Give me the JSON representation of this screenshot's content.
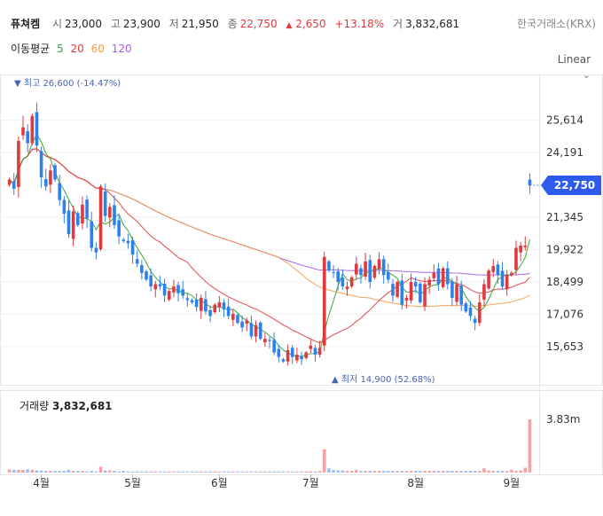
{
  "header": {
    "name": "퓨쳐켐",
    "open_label": "시",
    "open": "23,000",
    "high_label": "고",
    "high": "23,900",
    "low_label": "저",
    "low": "21,950",
    "close_label": "종",
    "close": "22,750",
    "change_arrow": "▲",
    "change": "2,650",
    "change_pct": "+13.18%",
    "volume_label": "거",
    "volume": "3,832,681"
  },
  "exchange": "한국거래소(KRX)",
  "moving_average": {
    "label": "이동평균",
    "periods": [
      "5",
      "20",
      "60",
      "120"
    ],
    "colors": [
      "#2ca02c",
      "#e0393e",
      "#f39c4a",
      "#a85ee6"
    ]
  },
  "scale": {
    "label": "Linear",
    "chevron": "⌄"
  },
  "annotations": {
    "high": "▼ 최고 26,600 (-14.47%)",
    "low": "▲ 최저 14,900 (52.68%)"
  },
  "last_price_tag": "22,750",
  "volume_panel": {
    "label": "거래량",
    "value": "3,832,681",
    "axis_max": "3.83m"
  },
  "colors": {
    "up": "#e0393e",
    "down": "#2f80ed",
    "price_tag": "#2f5bea",
    "annotation": "#4a63b5"
  },
  "chart_data": {
    "type": "candlestick",
    "y_ticks": [
      "25,614",
      "24,191",
      "22,750",
      "21,345",
      "19,922",
      "18,499",
      "17,076",
      "15,653"
    ],
    "y_tick_values": [
      25614,
      24191,
      22750,
      21345,
      19922,
      18499,
      17076,
      15653
    ],
    "ylim": [
      14600,
      27000
    ],
    "x_ticks": [
      "4월",
      "5월",
      "6월",
      "7월",
      "8월",
      "9월"
    ],
    "x_tick_index": [
      7,
      27,
      46,
      66,
      89,
      110
    ],
    "num_bars": 115,
    "close": [
      23000,
      22600,
      24700,
      25300,
      24600,
      25800,
      24500,
      23100,
      22700,
      23400,
      23000,
      22100,
      21500,
      20600,
      21600,
      21000,
      21900,
      21300,
      20000,
      19800,
      22700,
      21400,
      21800,
      21000,
      20500,
      20300,
      20200,
      19700,
      19300,
      18900,
      18600,
      18300,
      18400,
      18300,
      17900,
      18100,
      18300,
      18000,
      17900,
      17700,
      17600,
      17400,
      17800,
      17200,
      17000,
      17500,
      17600,
      17300,
      17000,
      17100,
      16700,
      16500,
      16800,
      16100,
      16600,
      16000,
      16000,
      15900,
      15400,
      15200,
      15000,
      15500,
      15200,
      15300,
      15100,
      15400,
      15700,
      15300,
      15600,
      19600,
      19000,
      18900,
      18500,
      18300,
      18300,
      18700,
      19300,
      18800,
      19400,
      18500,
      19200,
      19500,
      18800,
      18600,
      17900,
      18500,
      17500,
      17800,
      18500,
      18300,
      17600,
      18400,
      18600,
      18900,
      18400,
      19100,
      18400,
      17800,
      18400,
      17500,
      17200,
      17000,
      16700,
      17600,
      18400,
      19000,
      19200,
      18800,
      18300,
      18800,
      18900,
      20000,
      20100,
      20100,
      22750
    ],
    "volume_relative": [
      0.06,
      0.05,
      0.05,
      0.05,
      0.06,
      0.05,
      0.04,
      0.04,
      0.03,
      0.03,
      0.03,
      0.03,
      0.03,
      0.05,
      0.03,
      0.03,
      0.03,
      0.02,
      0.03,
      0.02,
      0.11,
      0.04,
      0.04,
      0.03,
      0.02,
      0.03,
      0.02,
      0.02,
      0.02,
      0.02,
      0.02,
      0.02,
      0.02,
      0.02,
      0.02,
      0.02,
      0.02,
      0.02,
      0.02,
      0.02,
      0.02,
      0.02,
      0.02,
      0.02,
      0.02,
      0.02,
      0.02,
      0.02,
      0.02,
      0.02,
      0.02,
      0.02,
      0.02,
      0.02,
      0.02,
      0.02,
      0.02,
      0.02,
      0.02,
      0.02,
      0.02,
      0.02,
      0.02,
      0.02,
      0.02,
      0.02,
      0.02,
      0.02,
      0.03,
      0.44,
      0.08,
      0.05,
      0.04,
      0.04,
      0.03,
      0.03,
      0.05,
      0.03,
      0.03,
      0.03,
      0.03,
      0.03,
      0.03,
      0.03,
      0.03,
      0.03,
      0.03,
      0.03,
      0.03,
      0.03,
      0.03,
      0.03,
      0.03,
      0.03,
      0.03,
      0.03,
      0.03,
      0.03,
      0.03,
      0.03,
      0.03,
      0.03,
      0.03,
      0.03,
      0.08,
      0.04,
      0.03,
      0.03,
      0.03,
      0.03,
      0.05,
      0.03,
      0.04,
      0.09,
      1.0
    ]
  }
}
